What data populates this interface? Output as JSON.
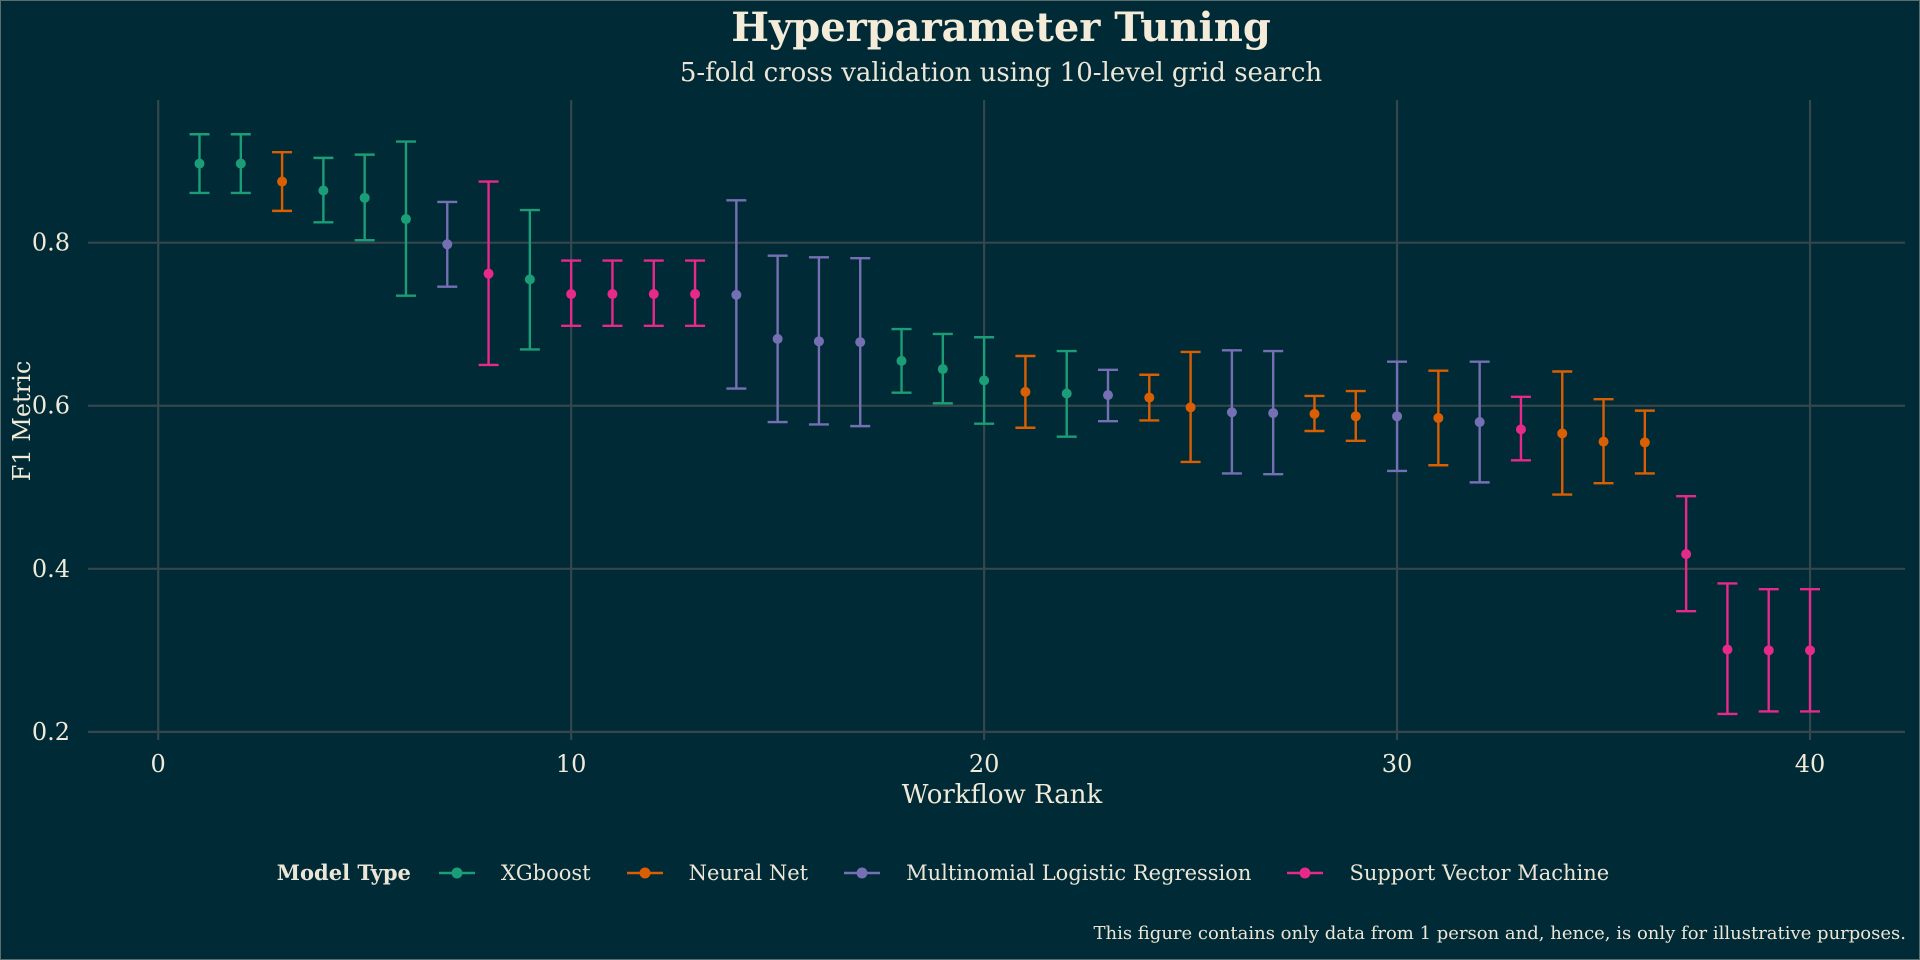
{
  "colors": {
    "background": "#002a36",
    "grid": "#33474d",
    "text": "#f0ead8",
    "xgboost": "#1b9e77",
    "neural_net": "#d95f02",
    "mlr": "#7570b3",
    "svm": "#e7298a"
  },
  "chart_data": {
    "type": "scatter",
    "title": "Hyperparameter Tuning",
    "subtitle": "5-fold cross validation using 10-level grid search",
    "xlabel": "Workflow Rank",
    "ylabel": "F1 Metric",
    "xlim": [
      -1.7,
      42.3
    ],
    "ylim": [
      0.19,
      0.975
    ],
    "xticks": [
      0,
      10,
      20,
      30,
      40
    ],
    "yticks": [
      0.2,
      0.4,
      0.6,
      0.8
    ],
    "ytick_labels": [
      "0.2",
      "0.4",
      "0.6",
      "0.8"
    ],
    "grid": true,
    "legend": {
      "title": "Model Type",
      "position": "bottom",
      "entries": [
        {
          "key": "xgboost",
          "label": "XGboost"
        },
        {
          "key": "neural_net",
          "label": "Neural Net"
        },
        {
          "key": "mlr",
          "label": "Multinomial Logistic Regression"
        },
        {
          "key": "svm",
          "label": "Support Vector Machine"
        }
      ]
    },
    "caption": "This figure contains only data from 1 person and, hence, is only for illustrative purposes.",
    "points": [
      {
        "rank": 1,
        "model": "xgboost",
        "mean": 0.897,
        "lower": 0.861,
        "upper": 0.933
      },
      {
        "rank": 2,
        "model": "xgboost",
        "mean": 0.897,
        "lower": 0.861,
        "upper": 0.933
      },
      {
        "rank": 3,
        "model": "neural_net",
        "mean": 0.875,
        "lower": 0.839,
        "upper": 0.911
      },
      {
        "rank": 4,
        "model": "xgboost",
        "mean": 0.864,
        "lower": 0.825,
        "upper": 0.904
      },
      {
        "rank": 5,
        "model": "xgboost",
        "mean": 0.855,
        "lower": 0.803,
        "upper": 0.908
      },
      {
        "rank": 6,
        "model": "xgboost",
        "mean": 0.829,
        "lower": 0.735,
        "upper": 0.924
      },
      {
        "rank": 7,
        "model": "mlr",
        "mean": 0.798,
        "lower": 0.746,
        "upper": 0.85
      },
      {
        "rank": 8,
        "model": "svm",
        "mean": 0.762,
        "lower": 0.65,
        "upper": 0.875
      },
      {
        "rank": 9,
        "model": "xgboost",
        "mean": 0.755,
        "lower": 0.669,
        "upper": 0.84
      },
      {
        "rank": 10,
        "model": "svm",
        "mean": 0.737,
        "lower": 0.698,
        "upper": 0.778
      },
      {
        "rank": 11,
        "model": "svm",
        "mean": 0.737,
        "lower": 0.698,
        "upper": 0.778
      },
      {
        "rank": 12,
        "model": "svm",
        "mean": 0.737,
        "lower": 0.698,
        "upper": 0.778
      },
      {
        "rank": 13,
        "model": "svm",
        "mean": 0.737,
        "lower": 0.698,
        "upper": 0.778
      },
      {
        "rank": 14,
        "model": "mlr",
        "mean": 0.736,
        "lower": 0.621,
        "upper": 0.852
      },
      {
        "rank": 15,
        "model": "mlr",
        "mean": 0.682,
        "lower": 0.58,
        "upper": 0.784
      },
      {
        "rank": 16,
        "model": "mlr",
        "mean": 0.679,
        "lower": 0.577,
        "upper": 0.782
      },
      {
        "rank": 17,
        "model": "mlr",
        "mean": 0.678,
        "lower": 0.575,
        "upper": 0.781
      },
      {
        "rank": 18,
        "model": "xgboost",
        "mean": 0.655,
        "lower": 0.616,
        "upper": 0.694
      },
      {
        "rank": 19,
        "model": "xgboost",
        "mean": 0.645,
        "lower": 0.603,
        "upper": 0.688
      },
      {
        "rank": 20,
        "model": "xgboost",
        "mean": 0.631,
        "lower": 0.578,
        "upper": 0.684
      },
      {
        "rank": 21,
        "model": "neural_net",
        "mean": 0.617,
        "lower": 0.573,
        "upper": 0.661
      },
      {
        "rank": 22,
        "model": "xgboost",
        "mean": 0.615,
        "lower": 0.562,
        "upper": 0.667
      },
      {
        "rank": 23,
        "model": "mlr",
        "mean": 0.613,
        "lower": 0.581,
        "upper": 0.644
      },
      {
        "rank": 24,
        "model": "neural_net",
        "mean": 0.61,
        "lower": 0.582,
        "upper": 0.638
      },
      {
        "rank": 25,
        "model": "neural_net",
        "mean": 0.598,
        "lower": 0.531,
        "upper": 0.666
      },
      {
        "rank": 26,
        "model": "mlr",
        "mean": 0.592,
        "lower": 0.517,
        "upper": 0.668
      },
      {
        "rank": 27,
        "model": "mlr",
        "mean": 0.591,
        "lower": 0.516,
        "upper": 0.667
      },
      {
        "rank": 28,
        "model": "neural_net",
        "mean": 0.59,
        "lower": 0.569,
        "upper": 0.612
      },
      {
        "rank": 29,
        "model": "neural_net",
        "mean": 0.587,
        "lower": 0.557,
        "upper": 0.618
      },
      {
        "rank": 30,
        "model": "mlr",
        "mean": 0.587,
        "lower": 0.52,
        "upper": 0.654
      },
      {
        "rank": 31,
        "model": "neural_net",
        "mean": 0.585,
        "lower": 0.527,
        "upper": 0.643
      },
      {
        "rank": 32,
        "model": "mlr",
        "mean": 0.58,
        "lower": 0.506,
        "upper": 0.654
      },
      {
        "rank": 33,
        "model": "svm",
        "mean": 0.571,
        "lower": 0.533,
        "upper": 0.611
      },
      {
        "rank": 34,
        "model": "neural_net",
        "mean": 0.566,
        "lower": 0.491,
        "upper": 0.642
      },
      {
        "rank": 35,
        "model": "neural_net",
        "mean": 0.556,
        "lower": 0.505,
        "upper": 0.608
      },
      {
        "rank": 36,
        "model": "neural_net",
        "mean": 0.555,
        "lower": 0.517,
        "upper": 0.594
      },
      {
        "rank": 37,
        "model": "svm",
        "mean": 0.418,
        "lower": 0.348,
        "upper": 0.489
      },
      {
        "rank": 38,
        "model": "svm",
        "mean": 0.301,
        "lower": 0.222,
        "upper": 0.382
      },
      {
        "rank": 39,
        "model": "svm",
        "mean": 0.3,
        "lower": 0.225,
        "upper": 0.375
      },
      {
        "rank": 40,
        "model": "svm",
        "mean": 0.3,
        "lower": 0.225,
        "upper": 0.375
      }
    ]
  }
}
